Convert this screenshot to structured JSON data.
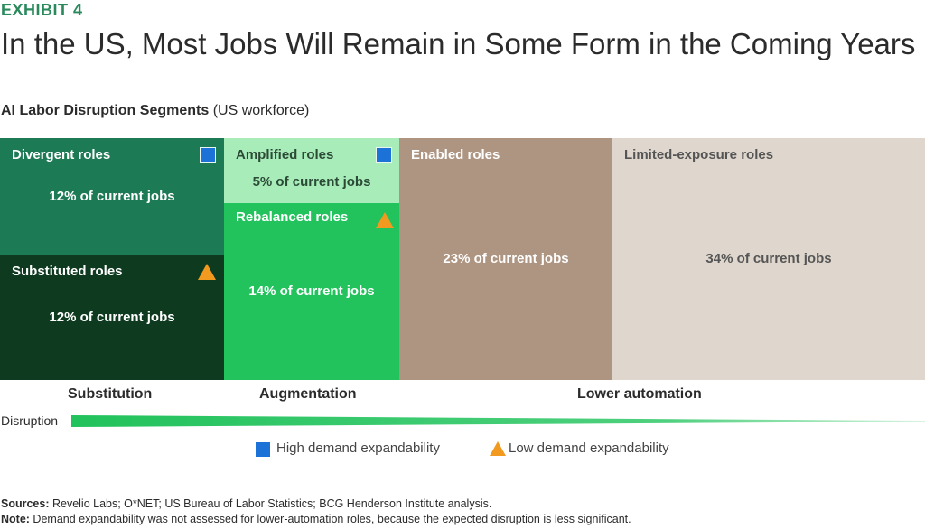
{
  "exhibit": "EXHIBIT 4",
  "title": "In the US, Most Jobs Will Remain in Some Form in the Coming Years",
  "subtitle": {
    "main": "AI Labor Disruption Segments",
    "paren": "(US workforce)"
  },
  "colors": {
    "divergent": "#1c7a55",
    "substituted": "#0e3a20",
    "amplified": "#a8ecb9",
    "rebalanced": "#22c25c",
    "enabled": "#ae9582",
    "limited": "#dfd7cd",
    "high_demand": "#1c72d6",
    "low_demand": "#f29a1f"
  },
  "chart_data": {
    "type": "treemap",
    "unit": "% of current jobs",
    "segments": [
      {
        "name": "Substitution",
        "roles": [
          {
            "label": "Divergent roles",
            "value": 12,
            "value_text": "12% of current jobs",
            "demand_expandability": "high"
          },
          {
            "label": "Substituted roles",
            "value": 12,
            "value_text": "12% of current jobs",
            "demand_expandability": "low"
          }
        ]
      },
      {
        "name": "Augmentation",
        "roles": [
          {
            "label": "Amplified roles",
            "value": 5,
            "value_text": "5% of current jobs",
            "demand_expandability": "high"
          },
          {
            "label": "Rebalanced roles",
            "value": 14,
            "value_text": "14% of current jobs",
            "demand_expandability": "low"
          }
        ]
      },
      {
        "name": "Lower automation",
        "roles": [
          {
            "label": "Enabled roles",
            "value": 23,
            "value_text": "23% of current jobs"
          },
          {
            "label": "Limited-exposure roles",
            "value": 34,
            "value_text": "34% of current jobs"
          }
        ]
      }
    ],
    "axis_label": "Disruption",
    "legend": [
      {
        "marker": "square",
        "label": "High demand expandability"
      },
      {
        "marker": "triangle",
        "label": "Low demand expandability"
      }
    ]
  },
  "sources": {
    "sources_label": "Sources:",
    "sources_text": " Revelio Labs; O*NET; US Bureau of Labor Statistics; BCG Henderson Institute analysis.",
    "note_label": "Note:",
    "note_text": " Demand expandability was not assessed for lower-automation roles, because the expected disruption is less significant."
  }
}
